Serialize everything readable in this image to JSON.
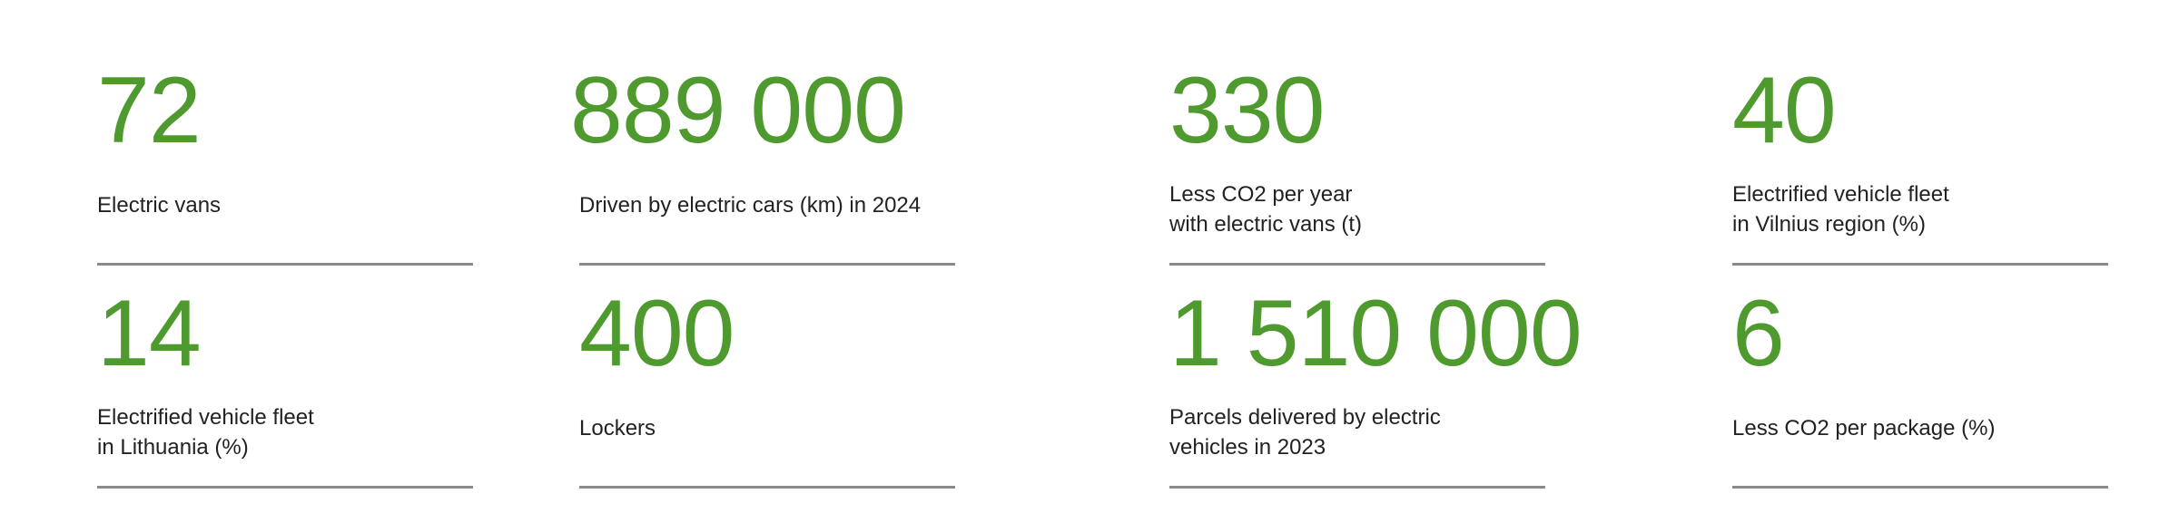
{
  "stats": [
    {
      "value": "72",
      "label": [
        "Electric vans"
      ]
    },
    {
      "value": "889 000",
      "label": [
        "Driven by electric cars (km) in 2024"
      ]
    },
    {
      "value": "330",
      "label": [
        "Less CO2 per year",
        "with electric vans (t)"
      ]
    },
    {
      "value": "40",
      "label": [
        "Electrified vehicle fleet",
        "in Vilnius region (%)"
      ]
    },
    {
      "value": "14",
      "label": [
        "Electrified vehicle fleet",
        "in Lithuania (%)"
      ]
    },
    {
      "value": "400",
      "label": [
        "Lockers"
      ]
    },
    {
      "value": "1 510 000",
      "label": [
        "Parcels delivered by electric",
        "vehicles in 2023"
      ]
    },
    {
      "value": "6",
      "label": [
        "Less CO2 per package (%)"
      ]
    }
  ]
}
